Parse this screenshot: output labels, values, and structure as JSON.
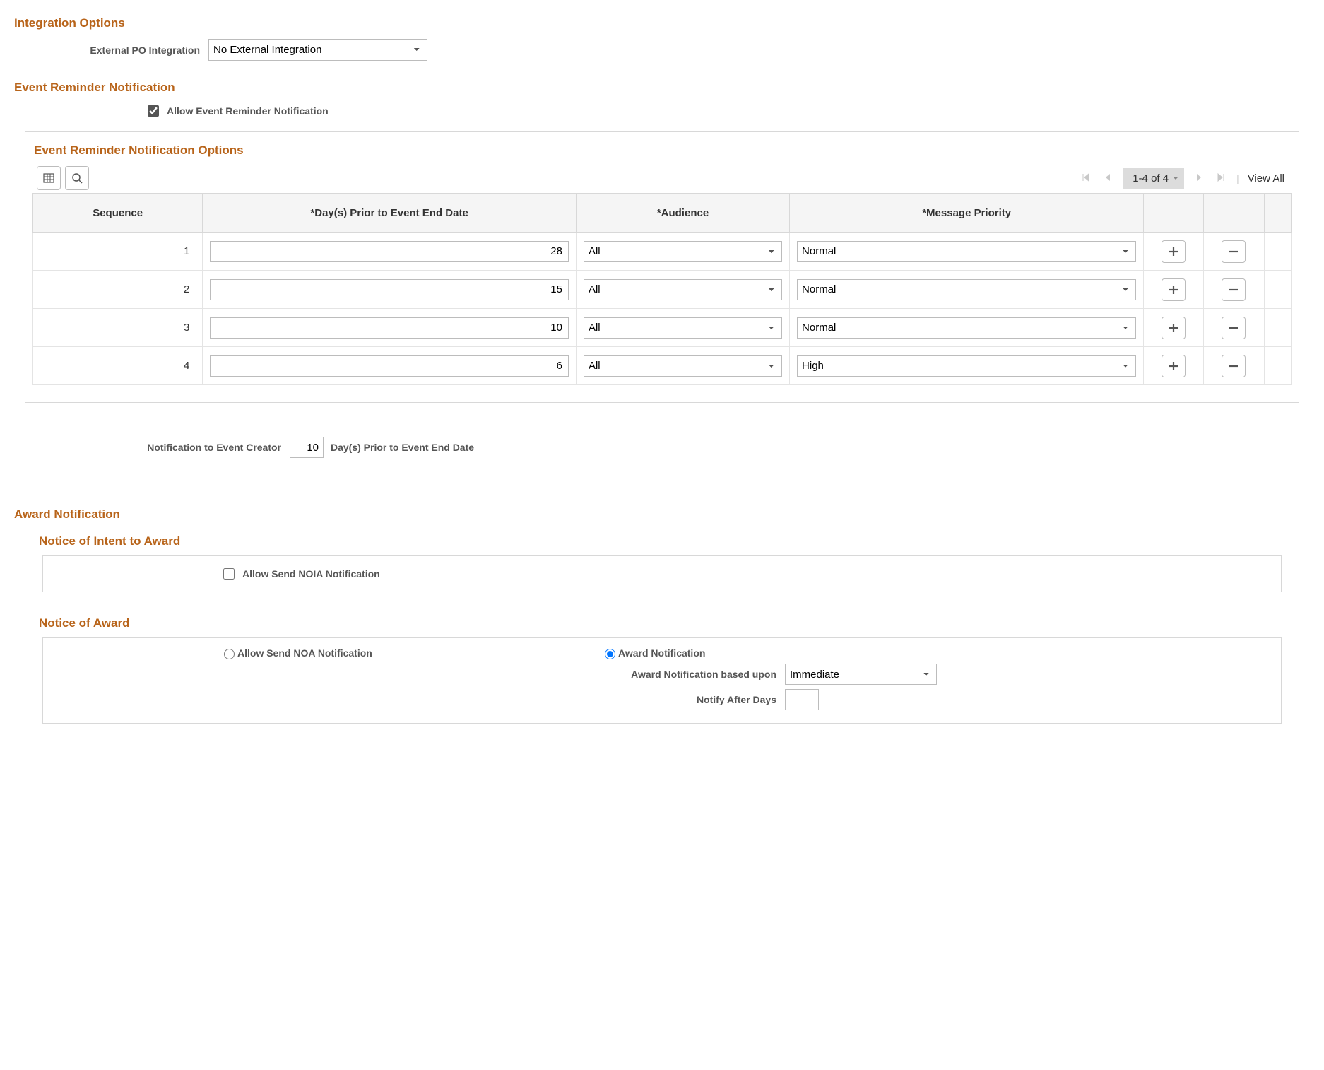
{
  "integration": {
    "header": "Integration Options",
    "po_label": "External PO Integration",
    "po_value": "No External Integration"
  },
  "reminder": {
    "header": "Event Reminder Notification",
    "allow_label": "Allow Event Reminder Notification",
    "allow_checked": true,
    "options_header": "Event Reminder Notification Options",
    "page_info": "1-4 of 4",
    "view_all": "View All",
    "columns": {
      "seq": "Sequence",
      "days": "*Day(s) Prior to Event End Date",
      "audience": "*Audience",
      "priority": "*Message Priority"
    },
    "rows": [
      {
        "seq": "1",
        "days": "28",
        "audience": "All",
        "priority": "Normal"
      },
      {
        "seq": "2",
        "days": "15",
        "audience": "All",
        "priority": "Normal"
      },
      {
        "seq": "3",
        "days": "10",
        "audience": "All",
        "priority": "Normal"
      },
      {
        "seq": "4",
        "days": "6",
        "audience": "All",
        "priority": "High"
      }
    ],
    "creator_label": "Notification to Event Creator",
    "creator_days": "10",
    "creator_suffix": "Day(s) Prior to Event End Date"
  },
  "award": {
    "header": "Award Notification",
    "noia_header": "Notice of Intent to Award",
    "noia_label": "Allow Send NOIA Notification",
    "noia_checked": false,
    "noa_header": "Notice of Award",
    "noa_allow_label": "Allow Send NOA Notification",
    "noa_award_label": "Award Notification",
    "noa_based_label": "Award Notification based upon",
    "noa_based_value": "Immediate",
    "notify_after_label": "Notify After Days",
    "notify_after_value": ""
  }
}
